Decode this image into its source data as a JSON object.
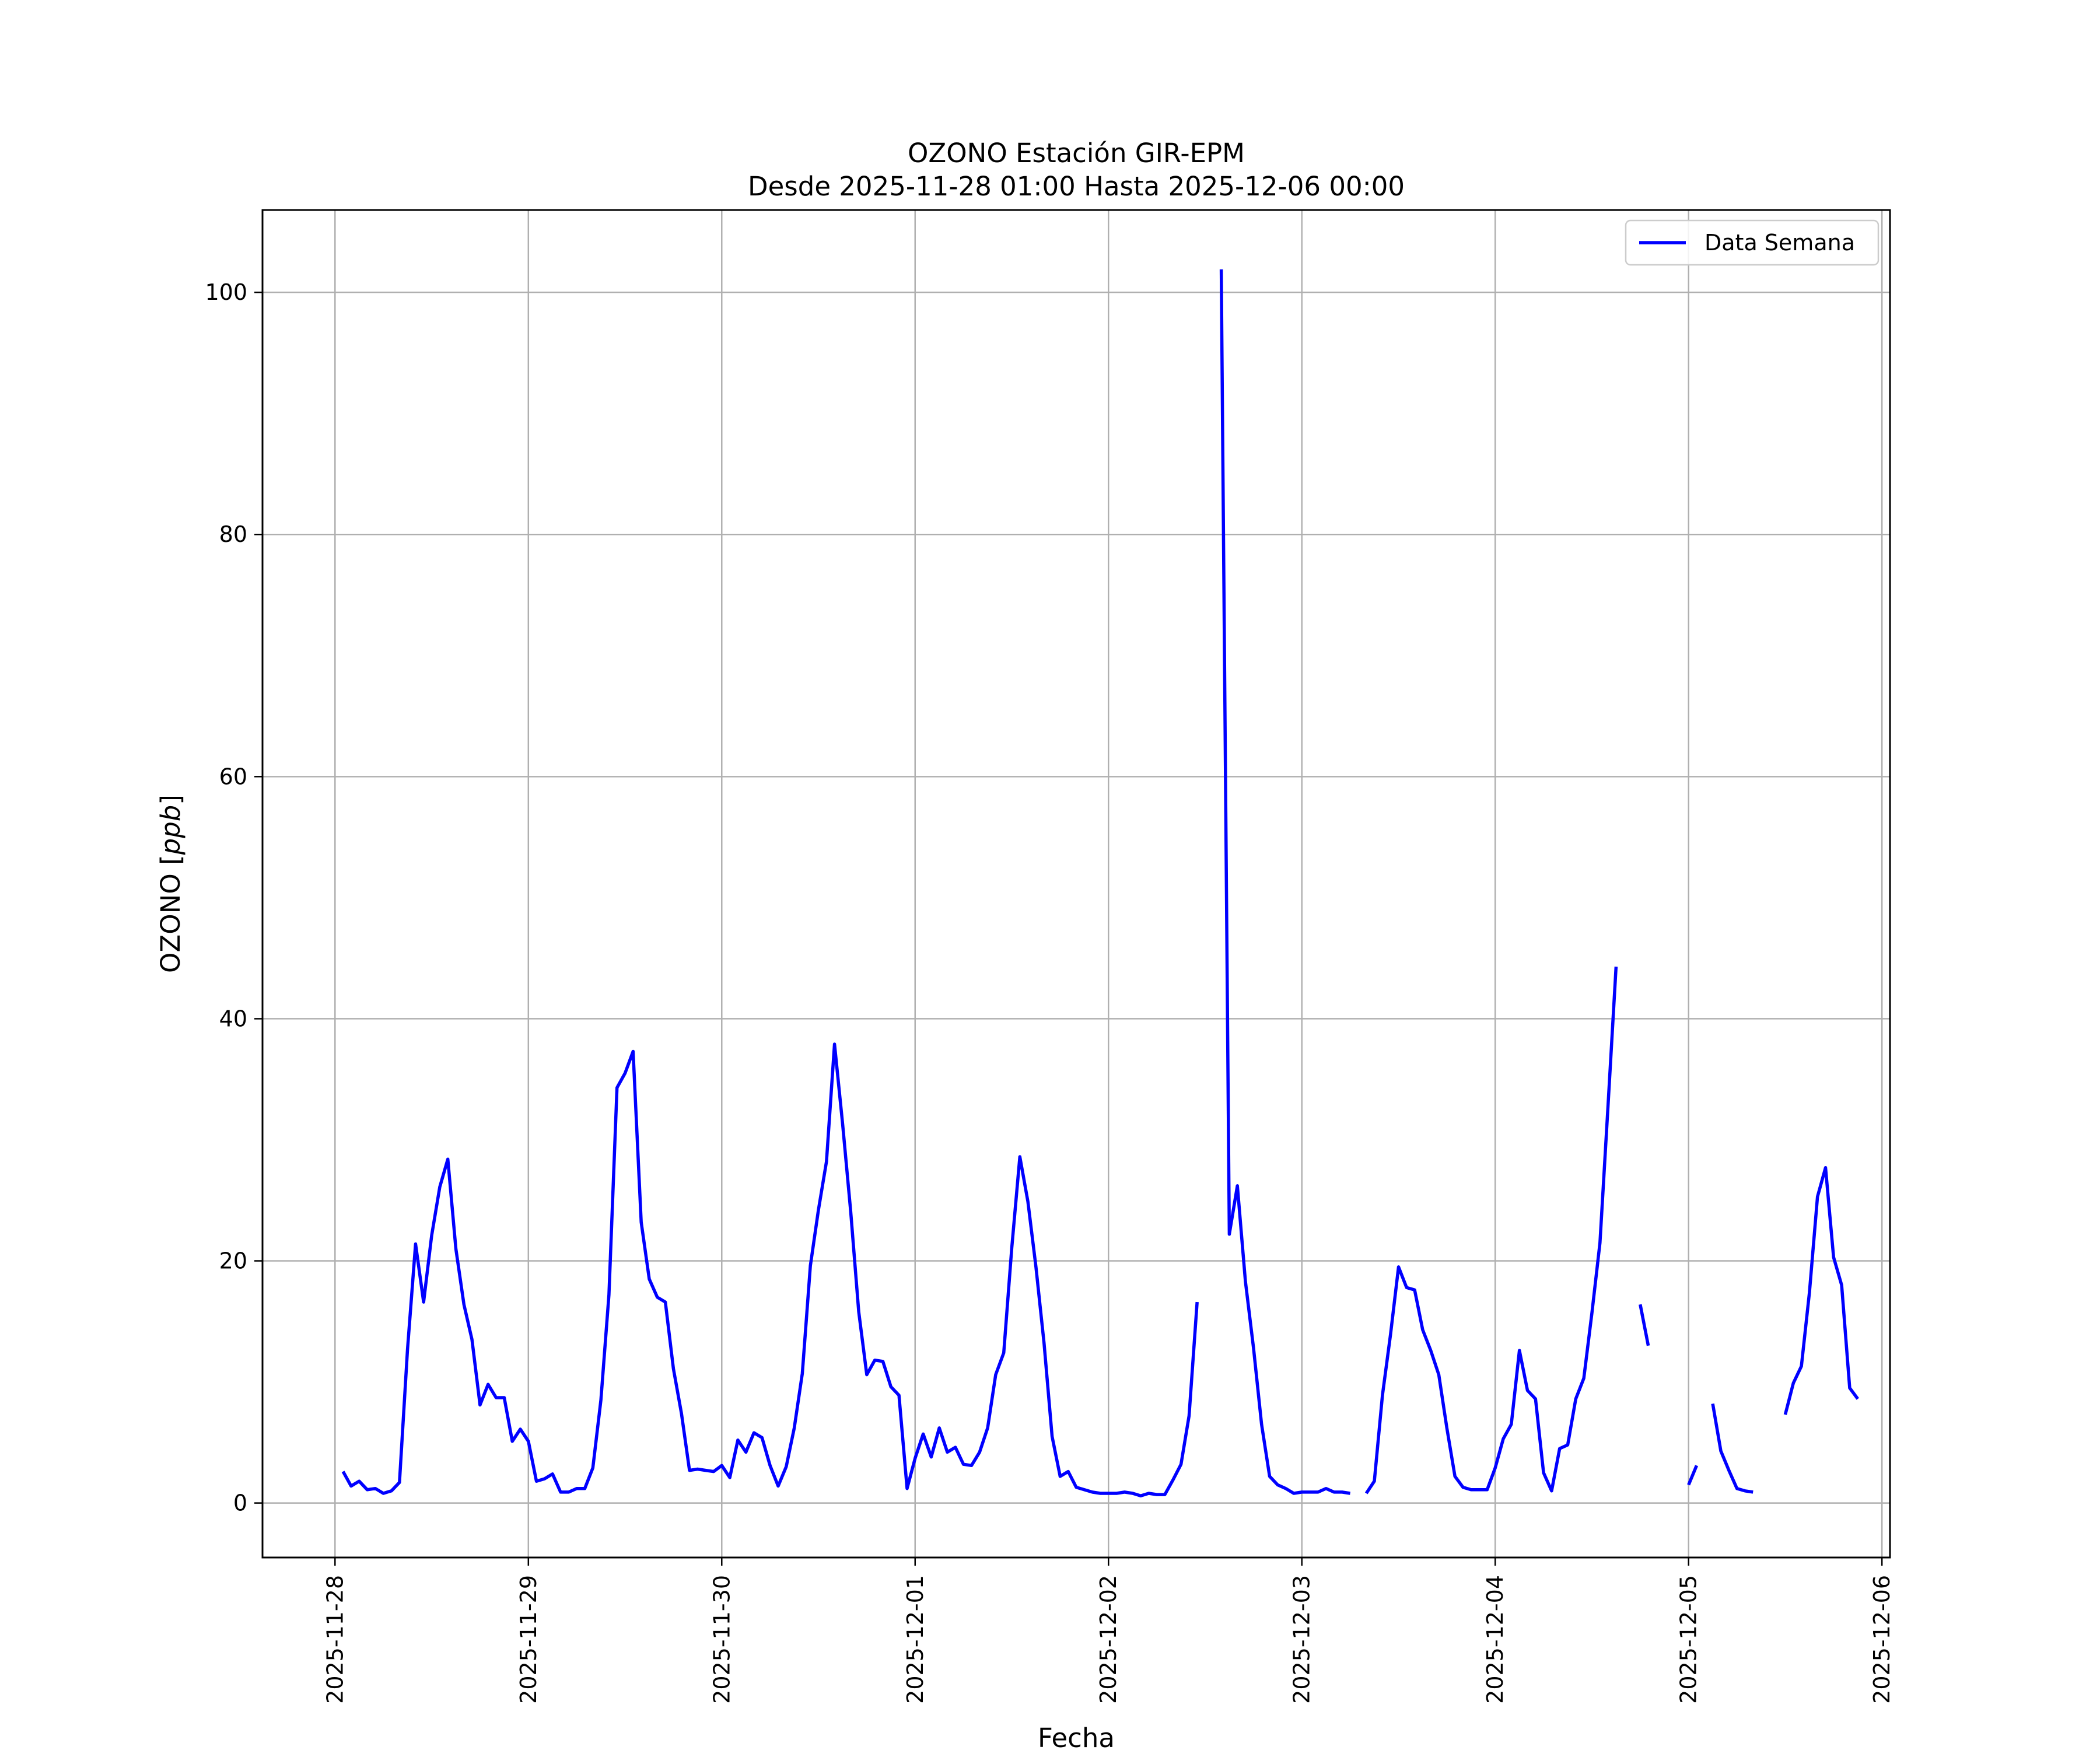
{
  "chart_data": {
    "type": "line",
    "title": "OZONO Estación GIR-EPM",
    "subtitle": "Desde 2025-11-28 01:00 Hasta 2025-12-06 00:00",
    "xlabel": "Fecha",
    "ylabel_text": "OZONO [",
    "ylabel_unit": "ppb",
    "ylabel_close": "]",
    "xlim": [
      "2025-11-27 15:00",
      "2025-12-06 01:00"
    ],
    "ylim": [
      -4.5,
      106.8
    ],
    "x_ticks": [
      "2025-11-28",
      "2025-11-29",
      "2025-11-30",
      "2025-12-01",
      "2025-12-02",
      "2025-12-03",
      "2025-12-04",
      "2025-12-05",
      "2025-12-06"
    ],
    "y_ticks": [
      0,
      20,
      40,
      60,
      80,
      100
    ],
    "y_tick_labels": [
      "0",
      "20",
      "40",
      "60",
      "80",
      "100"
    ],
    "grid": true,
    "legend": {
      "position": "upper-right",
      "entries": [
        "Data Semana"
      ]
    },
    "series": [
      {
        "name": "Data Semana",
        "color": "#0000ff",
        "start": "2025-11-28 01:00",
        "interval_hours": 1,
        "values": [
          2.6,
          1.4,
          1.8,
          1.1,
          1.2,
          0.8,
          1.0,
          1.7,
          12.7,
          21.4,
          16.6,
          22.1,
          26.1,
          28.4,
          21.0,
          16.4,
          13.5,
          8.1,
          9.8,
          8.7,
          8.7,
          5.1,
          6.1,
          5.1,
          1.8,
          2.0,
          2.4,
          0.9,
          0.9,
          1.2,
          1.2,
          2.9,
          8.5,
          17.2,
          34.3,
          35.5,
          37.3,
          23.2,
          18.5,
          17.0,
          16.6,
          11.1,
          7.4,
          2.7,
          2.8,
          2.7,
          2.6,
          3.1,
          2.1,
          5.2,
          4.2,
          5.8,
          5.4,
          3.1,
          1.4,
          3.0,
          6.2,
          10.7,
          19.6,
          24.2,
          28.2,
          37.9,
          31.3,
          24.1,
          15.8,
          10.6,
          11.8,
          11.7,
          9.6,
          8.9,
          1.2,
          3.7,
          5.7,
          3.8,
          6.2,
          4.2,
          4.6,
          3.2,
          3.1,
          4.2,
          6.2,
          10.6,
          12.4,
          21.1,
          28.6,
          24.9,
          19.5,
          13.2,
          5.5,
          2.2,
          2.6,
          1.3,
          1.1,
          0.9,
          0.8,
          0.8,
          0.8,
          0.9,
          0.8,
          0.6,
          0.8,
          0.7,
          0.7,
          1.9,
          3.2,
          7.2,
          16.6,
          null,
          null,
          101.9,
          22.2,
          26.2,
          18.3,
          12.8,
          6.5,
          2.2,
          1.5,
          1.2,
          0.8,
          0.9,
          0.9,
          0.9,
          1.2,
          0.9,
          0.9,
          0.8,
          null,
          0.8,
          1.8,
          8.9,
          13.9,
          19.5,
          17.8,
          17.6,
          14.3,
          12.6,
          10.6,
          6.2,
          2.2,
          1.3,
          1.1,
          1.1,
          1.1,
          2.9,
          5.3,
          6.5,
          12.6,
          9.3,
          8.6,
          2.5,
          1.0,
          4.5,
          4.8,
          8.6,
          10.3,
          15.7,
          21.5,
          32.8,
          44.3,
          null,
          null,
          16.4,
          13.0,
          null,
          null,
          null,
          null,
          1.5,
          3.1,
          null,
          8.2,
          4.3,
          2.7,
          1.2,
          1.0,
          0.9,
          null,
          null,
          null,
          7.3,
          9.9,
          11.3,
          17.4,
          25.3,
          27.7,
          20.3,
          18.0,
          9.5,
          8.6
        ]
      }
    ]
  }
}
